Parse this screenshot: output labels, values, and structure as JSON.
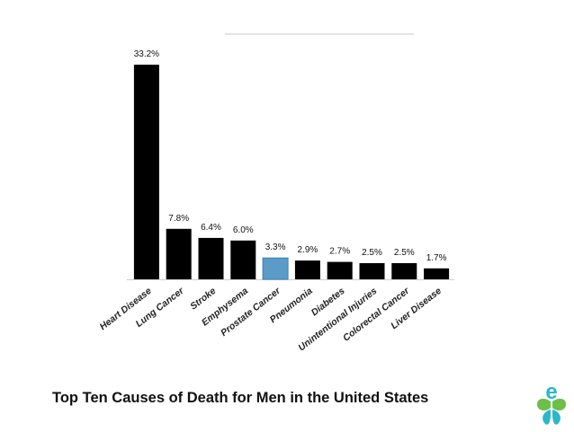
{
  "caption": "Top Ten Causes of Death for Men in the United States",
  "logo": {
    "icon": "butterfly-e-logo",
    "letter": "e",
    "colors": [
      "#6cc04a",
      "#2bb7c8"
    ]
  },
  "chart_data": {
    "type": "bar",
    "categories": [
      "Heart Disease",
      "Lung Cancer",
      "Stroke",
      "Emphysema",
      "Prostate Cancer",
      "Pneumonia",
      "Diabetes",
      "Unintentional Injuries",
      "Colorectal Cancer",
      "Liver Disease"
    ],
    "values": [
      33.2,
      7.8,
      6.4,
      6.0,
      3.3,
      2.9,
      2.7,
      2.5,
      2.5,
      1.7
    ],
    "value_labels": [
      "33.2%",
      "7.8%",
      "6.4%",
      "6.0%",
      "3.3%",
      "2.9%",
      "2.7%",
      "2.5%",
      "2.5%",
      "1.7%"
    ],
    "highlight_category": "Prostate Cancer",
    "colors": {
      "bar": "#000000",
      "highlight": "#5b9bc8"
    },
    "title": "",
    "xlabel": "",
    "ylabel": "",
    "ylim": [
      0,
      33.2
    ],
    "grid": false,
    "legend": "none"
  }
}
